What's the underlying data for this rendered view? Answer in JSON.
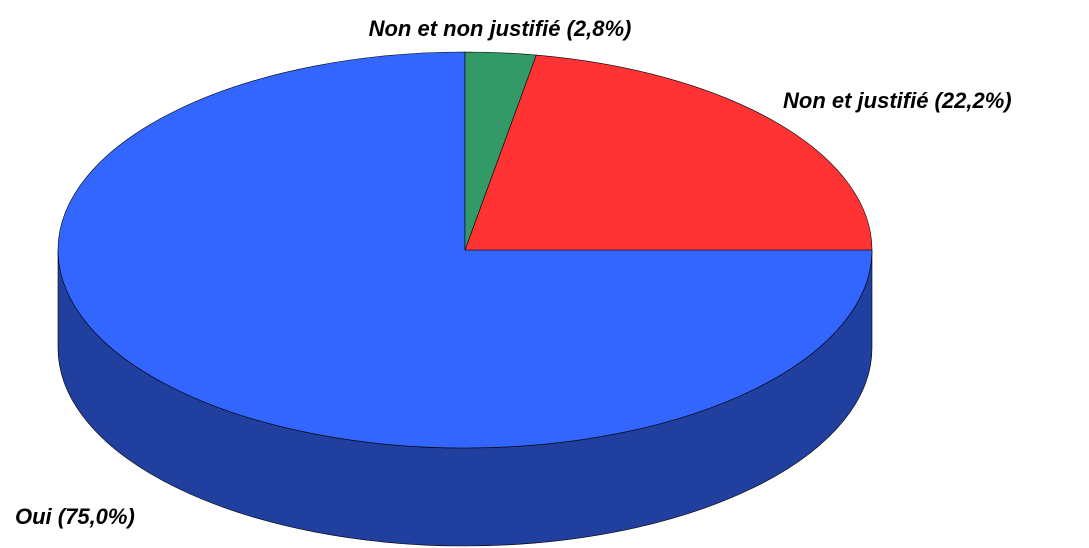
{
  "chart_data": {
    "type": "pie",
    "values": [
      75.0,
      22.2,
      2.8
    ],
    "value_labels": [
      "Oui (75,0%)",
      "Non et justifié (22,2%)",
      "Non et non justifié (2,8%)"
    ],
    "colors": [
      "#3366ff",
      "#ff3333",
      "#339966"
    ],
    "three_d": true
  }
}
